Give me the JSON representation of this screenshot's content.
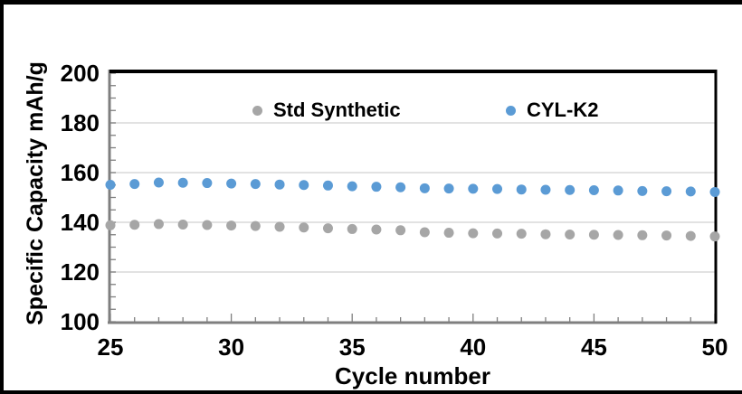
{
  "figure": {
    "background": "#ffffff",
    "frame_border_color": "#000000"
  },
  "chart_data": {
    "type": "scatter",
    "title": "",
    "xlabel": "Cycle number",
    "ylabel": "Specific Capacity mAh/g",
    "xlim": [
      25,
      50
    ],
    "ylim": [
      100,
      200
    ],
    "x_ticks": [
      25,
      30,
      35,
      40,
      45,
      50
    ],
    "y_ticks": [
      200,
      180,
      160,
      140,
      120,
      100
    ],
    "x_minor_step": 1,
    "y_minor_step": 5,
    "grid": "horizontal-major",
    "gridline_color": "#d9d9d9",
    "axis_color": "#7f7f7f",
    "plot_border_color": "#000000",
    "tick_label_color": "#000000",
    "legend_position": "top-inside",
    "x": [
      25,
      26,
      27,
      28,
      29,
      30,
      31,
      32,
      33,
      34,
      35,
      36,
      37,
      38,
      39,
      40,
      41,
      42,
      43,
      44,
      45,
      46,
      47,
      48,
      49,
      50
    ],
    "series": [
      {
        "name": "Std Synthetic",
        "color": "#a6a6a6",
        "marker": "circle",
        "values": [
          138.8,
          139.0,
          139.3,
          139.1,
          138.9,
          138.7,
          138.5,
          138.2,
          137.9,
          137.6,
          137.3,
          137.1,
          136.8,
          136.0,
          135.8,
          135.6,
          135.5,
          135.4,
          135.2,
          135.1,
          135.0,
          134.9,
          134.8,
          134.7,
          134.5,
          134.3
        ]
      },
      {
        "name": "CYL-K2",
        "color": "#5b9bd5",
        "marker": "circle",
        "values": [
          155.1,
          155.4,
          156.0,
          155.9,
          155.8,
          155.6,
          155.4,
          155.2,
          155.0,
          154.8,
          154.5,
          154.3,
          154.1,
          153.7,
          153.6,
          153.5,
          153.4,
          153.2,
          153.1,
          153.0,
          152.9,
          152.8,
          152.6,
          152.5,
          152.4,
          152.2
        ]
      }
    ]
  }
}
